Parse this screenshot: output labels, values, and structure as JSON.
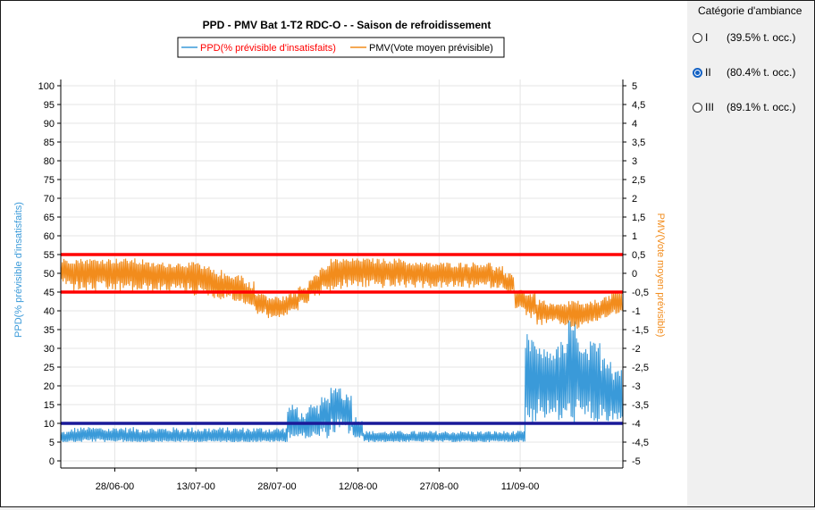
{
  "window": {
    "background": "#ffffff"
  },
  "side_panel": {
    "title": "Catégorie d'ambiance",
    "options": [
      {
        "label": "I",
        "occupancy": "(39.5% t. occ.)",
        "selected": false
      },
      {
        "label": "II",
        "occupancy": "(80.4% t. occ.)",
        "selected": true
      },
      {
        "label": "III",
        "occupancy": "(89.1% t. occ.)",
        "selected": false
      }
    ]
  },
  "chart_data": {
    "type": "line",
    "title": "PPD - PMV Bat 1-T2 RDC-O -  - Saison de refroidissement",
    "legend": {
      "placement": "top-center",
      "entries": [
        {
          "name": "PPD(% prévisible d'insatisfaits)",
          "color": "#ff0000"
        },
        {
          "name": "PMV(Vote moyen prévisible)",
          "color": "#000000"
        }
      ]
    },
    "ylabel_left": "PPD(% prévisible d'insatisfaits)",
    "ylabel_right": "PMV(Vote moyen prévisible)",
    "ylabel_left_color": "#3a9ad9",
    "ylabel_right_color": "#f28c1c",
    "x_range": [
      "2000-06-18",
      "2000-09-30"
    ],
    "x_ticks": [
      "28/06-00",
      "13/07-00",
      "28/07-00",
      "12/08-00",
      "27/08-00",
      "11/09-00"
    ],
    "x_tick_dates": [
      "2000-06-28",
      "2000-07-13",
      "2000-07-28",
      "2000-08-12",
      "2000-08-27",
      "2000-09-11"
    ],
    "ylim_left": [
      0,
      100
    ],
    "ylim_right": [
      -5,
      5
    ],
    "y_ticks_left": [
      "0",
      "5",
      "10",
      "15",
      "20",
      "25",
      "30",
      "35",
      "40",
      "45",
      "50",
      "55",
      "60",
      "65",
      "70",
      "75",
      "80",
      "85",
      "90",
      "95",
      "100"
    ],
    "y_ticks_right": [
      "-5",
      "-4,5",
      "-4",
      "-3,5",
      "-3",
      "-2,5",
      "-2",
      "-1,5",
      "-1",
      "-0,5",
      "0",
      "0,5",
      "1",
      "1,5",
      "2",
      "2,5",
      "3",
      "3,5",
      "4",
      "4,5",
      "5"
    ],
    "grid": true,
    "thresholds": [
      {
        "axis": "right",
        "value": 0.5,
        "color": "#ff0000"
      },
      {
        "axis": "right",
        "value": -0.5,
        "color": "#ff0000"
      },
      {
        "axis": "left",
        "value": 10,
        "color": "#1a1a99"
      }
    ],
    "series": [
      {
        "axis": "left",
        "color": "#3a9ad9",
        "x_start": "2000-06-18",
        "step_days": 2,
        "values": [
          6,
          6,
          7,
          7,
          6,
          7,
          6,
          6,
          6,
          6,
          6,
          6,
          6,
          6,
          6,
          6,
          6,
          6,
          6,
          6,
          6,
          10,
          9,
          10,
          12,
          16,
          14,
          8,
          6,
          6,
          6,
          6,
          6,
          6,
          6,
          6,
          6,
          6,
          6,
          6,
          6,
          6,
          6,
          22,
          24,
          23,
          22,
          24,
          22,
          20,
          18,
          17
        ],
        "min_values": [
          5,
          5,
          5,
          5,
          5,
          5,
          5,
          5,
          5,
          5,
          5,
          5,
          5,
          5,
          5,
          5,
          5,
          5,
          5,
          5,
          5,
          6,
          6,
          6,
          6,
          7,
          7,
          6,
          5,
          5,
          5,
          5,
          5,
          5,
          5,
          5,
          5,
          5,
          5,
          5,
          5,
          5,
          5,
          10,
          11,
          10,
          10,
          10,
          10,
          10,
          10,
          10
        ],
        "max_values": [
          8,
          9,
          9,
          9,
          9,
          9,
          9,
          9,
          9,
          9,
          9,
          9,
          9,
          9,
          9,
          9,
          9,
          9,
          9,
          9,
          9,
          15,
          13,
          15,
          17,
          20,
          18,
          12,
          8,
          8,
          8,
          8,
          8,
          8,
          8,
          8,
          8,
          8,
          8,
          8,
          8,
          8,
          8,
          34,
          30,
          30,
          32,
          38,
          30,
          32,
          30,
          26
        ]
      },
      {
        "axis": "right",
        "color": "#f28c1c",
        "x_start": "2000-06-18",
        "step_days": 2,
        "values": [
          0.1,
          0.1,
          0.1,
          0.1,
          0.1,
          0.1,
          0.1,
          0.0,
          0.0,
          0.0,
          0.0,
          0.0,
          0.0,
          -0.2,
          -0.3,
          -0.3,
          -0.4,
          -0.6,
          -0.8,
          -0.9,
          -0.9,
          -0.8,
          -0.6,
          -0.4,
          -0.1,
          0.1,
          0.1,
          0.2,
          0.2,
          0.1,
          0.1,
          0.1,
          0.1,
          0.0,
          0.0,
          0.0,
          0.0,
          0.0,
          0.0,
          0.0,
          -0.1,
          -0.3,
          -0.7,
          -0.8,
          -1.0,
          -1.1,
          -1.1,
          -1.0,
          -1.1,
          -1.0,
          -0.9,
          -0.7
        ],
        "min_values": [
          -0.3,
          -0.5,
          -0.5,
          -0.5,
          -0.5,
          -0.5,
          -0.5,
          -0.5,
          -0.5,
          -0.5,
          -0.5,
          -0.5,
          -0.6,
          -0.6,
          -0.7,
          -0.7,
          -0.8,
          -0.9,
          -1.1,
          -1.2,
          -1.2,
          -1.0,
          -0.8,
          -0.6,
          -0.5,
          -0.5,
          -0.4,
          -0.4,
          -0.4,
          -0.4,
          -0.4,
          -0.4,
          -0.4,
          -0.4,
          -0.4,
          -0.4,
          -0.4,
          -0.4,
          -0.4,
          -0.4,
          -0.4,
          -0.5,
          -1.0,
          -1.2,
          -1.4,
          -1.3,
          -1.4,
          -1.5,
          -1.4,
          -1.3,
          -1.2,
          -1.1
        ],
        "max_values": [
          0.4,
          0.4,
          0.4,
          0.4,
          0.4,
          0.4,
          0.4,
          0.4,
          0.3,
          0.3,
          0.3,
          0.3,
          0.3,
          0.2,
          0.1,
          0.0,
          0.0,
          -0.2,
          -0.5,
          -0.6,
          -0.6,
          -0.5,
          -0.3,
          0.0,
          0.2,
          0.4,
          0.4,
          0.4,
          0.4,
          0.4,
          0.4,
          0.4,
          0.3,
          0.3,
          0.3,
          0.3,
          0.3,
          0.3,
          0.3,
          0.3,
          0.2,
          0.0,
          -0.4,
          -0.5,
          -0.7,
          -0.8,
          -0.8,
          -0.7,
          -0.8,
          -0.7,
          -0.6,
          -0.5
        ]
      }
    ]
  }
}
